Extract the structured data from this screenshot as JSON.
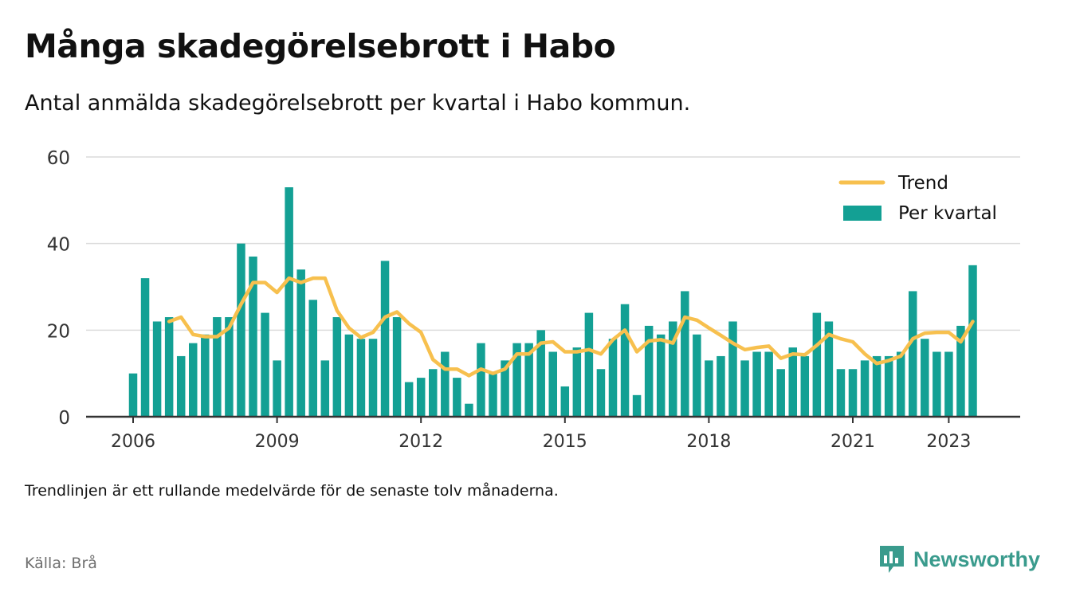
{
  "title": "Många skadegörelsebrott i Habo",
  "subtitle": "Antal anmälda skadegörelsebrott per kvartal i Habo kommun.",
  "footnote": "Trendlinjen är ett rullande medelvärde för de senaste tolv månaderna.",
  "source": "Källa: Brå",
  "brand": "Newsworthy",
  "colors": {
    "bars": "#13a094",
    "trend": "#f7c04e",
    "grid": "#dcdcdc",
    "axis": "#333333",
    "brand": "#3a9b8d"
  },
  "chart_data": {
    "type": "bar",
    "y_ticks": [
      0,
      20,
      40,
      60
    ],
    "ylim": [
      0,
      60
    ],
    "x_ticks": [
      "2006",
      "2009",
      "2012",
      "2015",
      "2018",
      "2021",
      "2023"
    ],
    "legend_position": "top-right",
    "grid": true,
    "categories": [
      "2006 Q1",
      "2006 Q2",
      "2006 Q3",
      "2006 Q4",
      "2007 Q1",
      "2007 Q2",
      "2007 Q3",
      "2007 Q4",
      "2008 Q1",
      "2008 Q2",
      "2008 Q3",
      "2008 Q4",
      "2009 Q1",
      "2009 Q2",
      "2009 Q3",
      "2009 Q4",
      "2010 Q1",
      "2010 Q2",
      "2010 Q3",
      "2010 Q4",
      "2011 Q1",
      "2011 Q2",
      "2011 Q3",
      "2011 Q4",
      "2012 Q1",
      "2012 Q2",
      "2012 Q3",
      "2012 Q4",
      "2013 Q1",
      "2013 Q2",
      "2013 Q3",
      "2013 Q4",
      "2014 Q1",
      "2014 Q2",
      "2014 Q3",
      "2014 Q4",
      "2015 Q1",
      "2015 Q2",
      "2015 Q3",
      "2015 Q4",
      "2016 Q1",
      "2016 Q2",
      "2016 Q3",
      "2016 Q4",
      "2017 Q1",
      "2017 Q2",
      "2017 Q3",
      "2017 Q4",
      "2018 Q1",
      "2018 Q2",
      "2018 Q3",
      "2018 Q4",
      "2019 Q1",
      "2019 Q2",
      "2019 Q3",
      "2019 Q4",
      "2020 Q1",
      "2020 Q2",
      "2020 Q3",
      "2020 Q4",
      "2021 Q1",
      "2021 Q2",
      "2021 Q3",
      "2021 Q4",
      "2022 Q1",
      "2022 Q2",
      "2022 Q3",
      "2022 Q4",
      "2023 Q1",
      "2023 Q2",
      "2023 Q3",
      "2023 Q4"
    ],
    "series": [
      {
        "name": "Per kvartal",
        "type": "bar",
        "values": [
          10,
          32,
          22,
          23,
          14,
          17,
          19,
          23,
          23,
          40,
          37,
          24,
          13,
          53,
          34,
          27,
          13,
          23,
          19,
          18,
          18,
          36,
          23,
          8,
          9,
          11,
          15,
          9,
          3,
          17,
          10,
          13,
          17,
          17,
          20,
          15,
          7,
          16,
          24,
          11,
          18,
          26,
          5,
          21,
          19,
          22,
          29,
          19,
          13,
          14,
          22,
          13,
          15,
          15,
          11,
          16,
          14,
          24,
          22,
          11,
          11,
          13,
          14,
          14,
          15,
          29,
          18,
          15,
          15,
          21,
          35,
          0
        ]
      },
      {
        "name": "Trend",
        "type": "line",
        "values": [
          null,
          null,
          null,
          22,
          23,
          19,
          18.5,
          18.5,
          20.5,
          26,
          31,
          31,
          28.7,
          32,
          31,
          32,
          32,
          24.5,
          20.5,
          18.3,
          19.5,
          23,
          24.2,
          21.5,
          19.5,
          13.2,
          11,
          11,
          9.5,
          11,
          10,
          11,
          14.5,
          14.5,
          17,
          17.3,
          15,
          15,
          15.5,
          14.5,
          17.8,
          20,
          15,
          17.5,
          17.8,
          17,
          23,
          22.3,
          20.5,
          18.8,
          17,
          15.5,
          16,
          16.3,
          13.5,
          14.5,
          14.3,
          16.5,
          19,
          18,
          17.3,
          14.5,
          12.3,
          13,
          14,
          18,
          19.3,
          19.5,
          19.5,
          17.3,
          22,
          null
        ]
      }
    ]
  }
}
